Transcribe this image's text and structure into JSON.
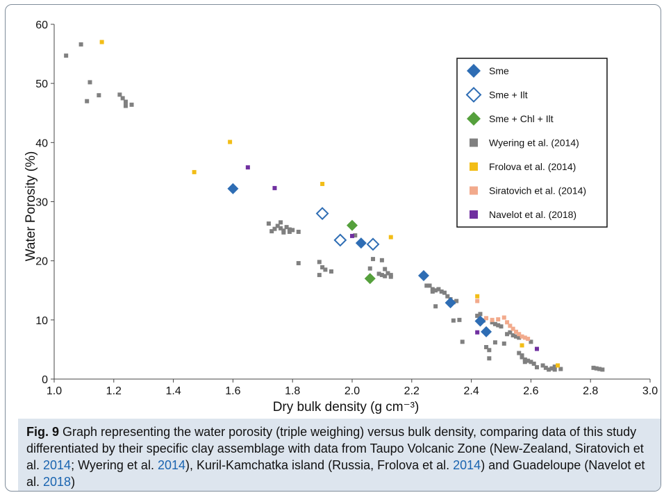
{
  "chart_data": {
    "type": "scatter",
    "xlabel": "Dry bulk density (g cm⁻³)",
    "ylabel": "Water Porosity (%)",
    "xlim": [
      1.0,
      3.0
    ],
    "ylim": [
      0,
      60
    ],
    "xticks": [
      1.0,
      1.2,
      1.4,
      1.6,
      1.8,
      2.0,
      2.2,
      2.4,
      2.6,
      2.8,
      3.0
    ],
    "xtick_labels": [
      "1.0",
      "1.2",
      "1.4",
      "1.6",
      "1.8",
      "2.0",
      "2.2",
      "2.4",
      "2.6",
      "2.8",
      "3.0"
    ],
    "yticks": [
      0,
      10,
      20,
      30,
      40,
      50,
      60
    ],
    "ytick_labels": [
      "0",
      "10",
      "20",
      "30",
      "40",
      "50",
      "60"
    ],
    "grid": false,
    "legend_position": "top-right",
    "series": [
      {
        "name": "Sme",
        "marker": "diamond-filled",
        "color": "#2e6db4",
        "points": [
          [
            1.6,
            32.2
          ],
          [
            2.03,
            23.0
          ],
          [
            2.24,
            17.5
          ],
          [
            2.33,
            12.9
          ],
          [
            2.43,
            9.8
          ],
          [
            2.45,
            8.0
          ]
        ]
      },
      {
        "name": "Sme + Ilt",
        "marker": "diamond-open",
        "color": "#2e6db4",
        "points": [
          [
            1.9,
            28.0
          ],
          [
            1.96,
            23.5
          ],
          [
            2.07,
            22.8
          ]
        ]
      },
      {
        "name": "Sme + Chl + Ilt",
        "marker": "diamond-filled",
        "color": "#55a03c",
        "points": [
          [
            2.0,
            26.0
          ],
          [
            2.06,
            17.0
          ]
        ]
      },
      {
        "name": "Wyering et al. (2014)",
        "marker": "square",
        "color": "#808080",
        "points": [
          [
            1.04,
            54.7
          ],
          [
            1.09,
            56.6
          ],
          [
            1.11,
            47.0
          ],
          [
            1.12,
            50.2
          ],
          [
            1.15,
            48.0
          ],
          [
            1.22,
            48.1
          ],
          [
            1.23,
            47.5
          ],
          [
            1.24,
            46.9
          ],
          [
            1.24,
            46.2
          ],
          [
            1.26,
            46.4
          ],
          [
            1.72,
            26.3
          ],
          [
            1.73,
            25.0
          ],
          [
            1.74,
            25.4
          ],
          [
            1.75,
            25.9
          ],
          [
            1.76,
            26.5
          ],
          [
            1.76,
            25.5
          ],
          [
            1.77,
            25.1
          ],
          [
            1.77,
            24.8
          ],
          [
            1.78,
            25.7
          ],
          [
            1.79,
            25.3
          ],
          [
            1.79,
            24.9
          ],
          [
            1.8,
            25.2
          ],
          [
            1.82,
            24.9
          ],
          [
            1.82,
            19.6
          ],
          [
            1.89,
            19.8
          ],
          [
            1.89,
            17.6
          ],
          [
            1.9,
            18.9
          ],
          [
            1.91,
            18.5
          ],
          [
            1.93,
            18.2
          ],
          [
            2.01,
            24.3
          ],
          [
            2.06,
            18.7
          ],
          [
            2.07,
            20.3
          ],
          [
            2.09,
            17.8
          ],
          [
            2.1,
            17.6
          ],
          [
            2.1,
            20.1
          ],
          [
            2.11,
            18.6
          ],
          [
            2.11,
            17.4
          ],
          [
            2.12,
            17.9
          ],
          [
            2.13,
            17.3
          ],
          [
            2.13,
            17.6
          ],
          [
            2.25,
            15.8
          ],
          [
            2.26,
            15.8
          ],
          [
            2.27,
            15.2
          ],
          [
            2.27,
            14.8
          ],
          [
            2.28,
            15.0
          ],
          [
            2.28,
            12.3
          ],
          [
            2.29,
            15.2
          ],
          [
            2.3,
            14.8
          ],
          [
            2.31,
            14.6
          ],
          [
            2.32,
            14.0
          ],
          [
            2.33,
            13.5
          ],
          [
            2.34,
            13.0
          ],
          [
            2.34,
            9.9
          ],
          [
            2.35,
            13.2
          ],
          [
            2.36,
            10.0
          ],
          [
            2.37,
            6.3
          ],
          [
            2.42,
            10.7
          ],
          [
            2.43,
            11.0
          ],
          [
            2.44,
            9.9
          ],
          [
            2.45,
            5.4
          ],
          [
            2.46,
            4.9
          ],
          [
            2.46,
            3.5
          ],
          [
            2.47,
            9.6
          ],
          [
            2.48,
            6.2
          ],
          [
            2.48,
            9.3
          ],
          [
            2.49,
            9.1
          ],
          [
            2.5,
            8.9
          ],
          [
            2.51,
            6.0
          ],
          [
            2.52,
            7.6
          ],
          [
            2.53,
            7.9
          ],
          [
            2.54,
            7.4
          ],
          [
            2.55,
            7.2
          ],
          [
            2.56,
            7.0
          ],
          [
            2.56,
            4.4
          ],
          [
            2.57,
            4.0
          ],
          [
            2.57,
            3.7
          ],
          [
            2.58,
            3.3
          ],
          [
            2.58,
            2.9
          ],
          [
            2.59,
            3.1
          ],
          [
            2.6,
            6.3
          ],
          [
            2.6,
            2.9
          ],
          [
            2.61,
            2.6
          ],
          [
            2.62,
            2.0
          ],
          [
            2.64,
            2.3
          ],
          [
            2.65,
            1.9
          ],
          [
            2.66,
            1.6
          ],
          [
            2.67,
            1.8
          ],
          [
            2.68,
            2.1
          ],
          [
            2.68,
            1.6
          ],
          [
            2.7,
            1.7
          ],
          [
            2.81,
            1.9
          ],
          [
            2.82,
            1.8
          ],
          [
            2.83,
            1.7
          ],
          [
            2.84,
            1.6
          ]
        ]
      },
      {
        "name": "Frolova et al. (2014)",
        "marker": "square",
        "color": "#f2bd17",
        "points": [
          [
            1.16,
            57.0
          ],
          [
            1.47,
            35.0
          ],
          [
            1.59,
            40.1
          ],
          [
            1.9,
            33.0
          ],
          [
            2.13,
            24.0
          ],
          [
            2.42,
            14.0
          ],
          [
            2.57,
            5.7
          ],
          [
            2.69,
            2.3
          ]
        ]
      },
      {
        "name": "Siratovich et al. (2014)",
        "marker": "square",
        "color": "#f2aa8c",
        "points": [
          [
            2.42,
            13.2
          ],
          [
            2.45,
            10.3
          ],
          [
            2.47,
            10.0
          ],
          [
            2.49,
            10.1
          ],
          [
            2.51,
            10.4
          ],
          [
            2.52,
            9.6
          ],
          [
            2.53,
            9.0
          ],
          [
            2.54,
            8.5
          ],
          [
            2.55,
            8.0
          ],
          [
            2.56,
            7.6
          ],
          [
            2.57,
            7.2
          ],
          [
            2.58,
            7.0
          ],
          [
            2.59,
            6.8
          ]
        ]
      },
      {
        "name": "Navelot et al. (2018)",
        "marker": "square",
        "color": "#7030a0",
        "points": [
          [
            1.65,
            35.8
          ],
          [
            1.74,
            32.3
          ],
          [
            2.0,
            24.2
          ],
          [
            2.42,
            7.9
          ],
          [
            2.62,
            5.1
          ]
        ]
      }
    ]
  },
  "caption": {
    "label": "Fig. 9",
    "parts": [
      {
        "text": " Graph representing the water porosity (triple weighing) versus bulk density, comparing data of this study differentiated by their specific clay assemblage with data from Taupo Volcanic Zone (New-Zealand, Siratovich et al. ",
        "link": false
      },
      {
        "text": "2014",
        "link": true
      },
      {
        "text": "; Wyering et al. ",
        "link": false
      },
      {
        "text": "2014",
        "link": true
      },
      {
        "text": "), Kuril-Kamchatka island (Russia, Frolova et al. ",
        "link": false
      },
      {
        "text": "2014",
        "link": true
      },
      {
        "text": ") and Guadeloupe (Navelot et al. ",
        "link": false
      },
      {
        "text": "2018",
        "link": true
      },
      {
        "text": ")",
        "link": false
      }
    ]
  }
}
